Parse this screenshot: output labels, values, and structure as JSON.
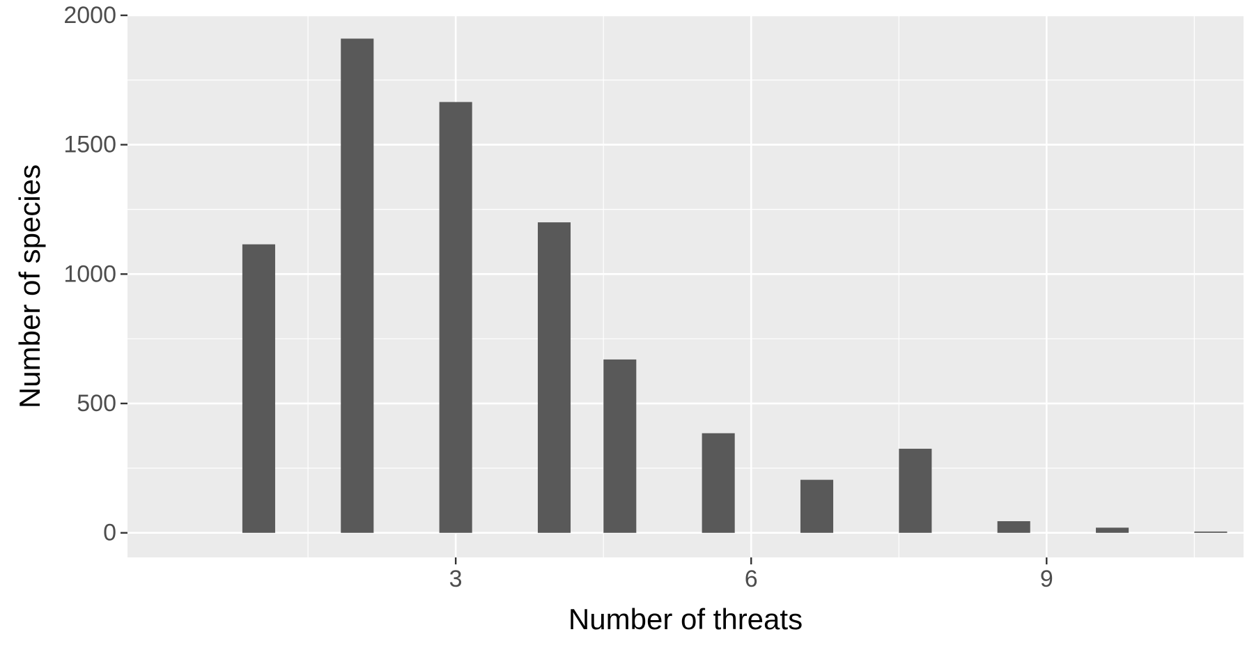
{
  "chart_data": {
    "type": "bar",
    "title": "",
    "xlabel": "Number of threats",
    "ylabel": "Number of species",
    "x": [
      1,
      2,
      3,
      4,
      4.667,
      5.667,
      6.667,
      7.667,
      8.667,
      9.667,
      10.667
    ],
    "values": [
      1115,
      1910,
      1665,
      1200,
      670,
      385,
      205,
      325,
      45,
      20,
      5
    ],
    "xlim": [
      -0.333,
      11.0
    ],
    "ylim": [
      -95,
      2000
    ],
    "x_ticks": [
      "3",
      "6",
      "9"
    ],
    "x_tick_values": [
      3,
      6,
      9
    ],
    "y_ticks": [
      "0",
      "500",
      "1000",
      "1500",
      "2000"
    ],
    "y_tick_values": [
      0,
      500,
      1000,
      1500,
      2000
    ],
    "grid": true,
    "bar_color": "#595959",
    "panel_color": "#ebebeb",
    "grid_color": "#ffffff"
  }
}
